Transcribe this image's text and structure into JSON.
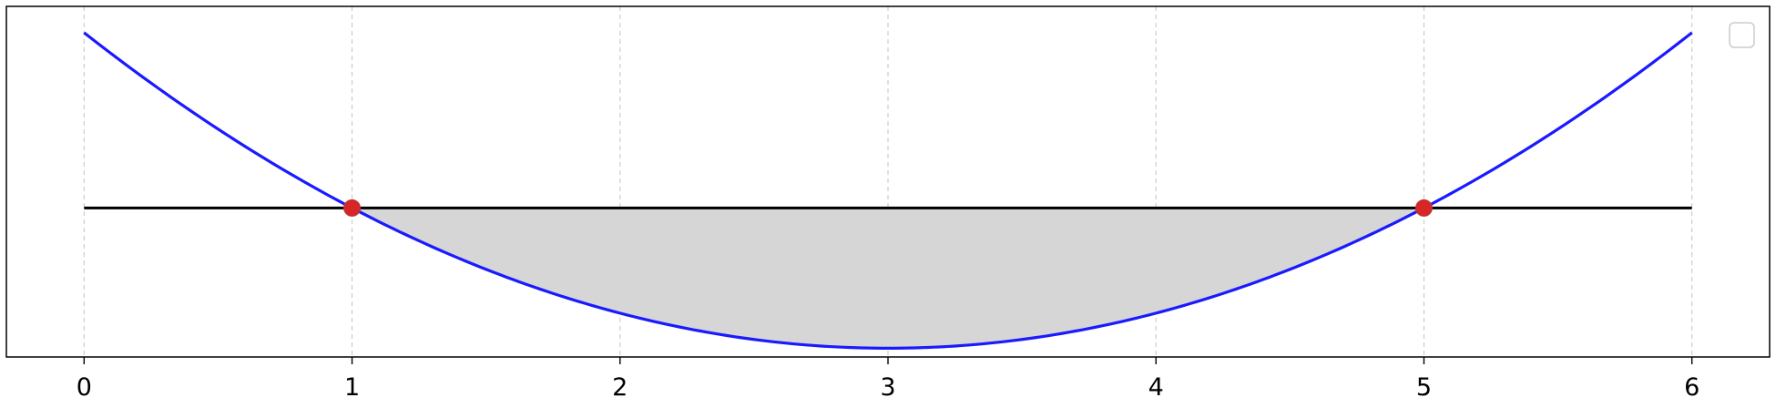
{
  "chart_data": {
    "type": "line",
    "title": "",
    "xlabel": "",
    "ylabel": "",
    "xlim": [
      -0.29,
      6.29
    ],
    "ylim": [
      -4.25,
      5.75
    ],
    "x_ticks": [
      0,
      1,
      2,
      3,
      4,
      5,
      6
    ],
    "x_tick_labels": [
      "0",
      "1",
      "2",
      "3",
      "4",
      "5",
      "6"
    ],
    "y_ticks_visible": false,
    "grid": {
      "x": true,
      "y": false,
      "style": "dashed"
    },
    "legend": {
      "visible": true,
      "placement": "top-right",
      "entries": []
    },
    "series": [
      {
        "kind": "curve",
        "color": "#1a1aff",
        "x": [
          0,
          0.5,
          1,
          1.5,
          2,
          2.5,
          3,
          3.5,
          4,
          4.5,
          5,
          5.5,
          6
        ],
        "y": [
          5,
          2.25,
          0,
          -1.75,
          -3,
          -3.75,
          -4,
          -3.75,
          -3,
          -1.75,
          0,
          2.25,
          5
        ]
      },
      {
        "kind": "horizontal-line",
        "color": "#000000",
        "x": [
          0,
          6
        ],
        "y": [
          0,
          0
        ]
      }
    ],
    "points": [
      {
        "x": 1,
        "y": 0,
        "color": "#d62728"
      },
      {
        "x": 5,
        "y": 0,
        "color": "#d62728"
      }
    ],
    "shaded_region": {
      "x_from": 1,
      "x_to": 5,
      "between": "curve-and-line",
      "color": "#d6d6d6"
    }
  }
}
